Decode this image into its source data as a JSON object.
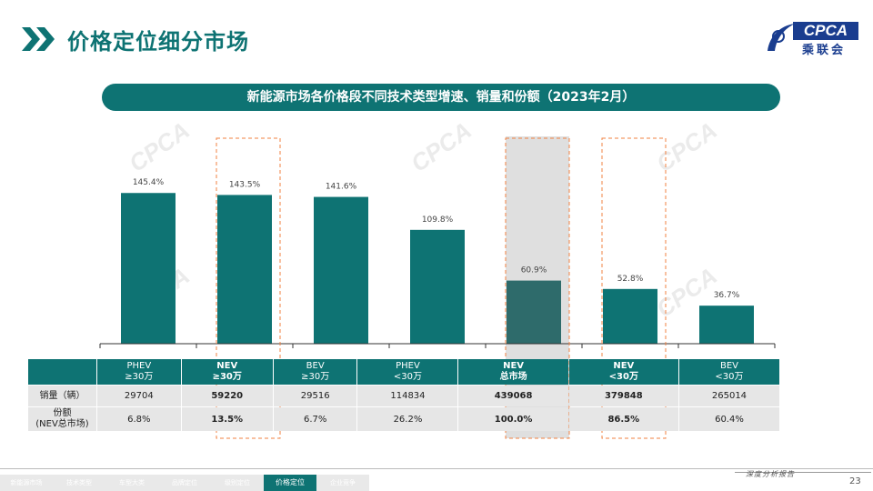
{
  "page": {
    "title": "价格定位细分市场",
    "banner": "新能源市场各价格段不同技术类型增速、销量和份额（2023年2月）",
    "page_number": "23",
    "footer_caption": "深度分析报告"
  },
  "logo": {
    "text": "CPCA",
    "cn": "乘联会"
  },
  "watermark": {
    "text": "CPCA",
    "cn": "乘联会"
  },
  "colors": {
    "accent": "#0e7373",
    "highlight_border": "#f08040",
    "highlight_fill": "#d9d9d9",
    "bar_highlight": "#2e6b6b"
  },
  "footer_nav": [
    {
      "label": "新能源市场",
      "active": false
    },
    {
      "label": "技术类型",
      "active": false
    },
    {
      "label": "车型大类",
      "active": false
    },
    {
      "label": "品牌定位",
      "active": false
    },
    {
      "label": "级别定位",
      "active": false
    },
    {
      "label": "价格定位",
      "active": true
    },
    {
      "label": "企业竞争",
      "active": false
    }
  ],
  "chart_data": {
    "type": "bar",
    "title": "新能源市场各价格段不同技术类型增速、销量和份额（2023年2月）",
    "categories": [
      "PHEV ≥30万",
      "NEV ≥30万",
      "BEV ≥30万",
      "PHEV <30万",
      "NEV 总市场",
      "NEV <30万",
      "BEV <30万"
    ],
    "category_lines": [
      [
        "PHEV",
        "≥30万"
      ],
      [
        "NEV",
        "≥30万"
      ],
      [
        "BEV",
        "≥30万"
      ],
      [
        "PHEV",
        "<30万"
      ],
      [
        "NEV",
        "总市场"
      ],
      [
        "NEV",
        "<30万"
      ],
      [
        "BEV",
        "<30万"
      ]
    ],
    "values": [
      145.4,
      143.5,
      141.6,
      109.8,
      60.9,
      52.8,
      36.7
    ],
    "value_labels": [
      "145.4%",
      "143.5%",
      "141.6%",
      "109.8%",
      "60.9%",
      "52.8%",
      "36.7%"
    ],
    "ylim": [
      0,
      200
    ],
    "highlight_dashed": [
      1,
      4,
      5
    ],
    "highlight_filled": [
      4
    ],
    "bold_categories": [
      1,
      4,
      5
    ],
    "table": {
      "rows": [
        {
          "label": "销量（辆）",
          "values": [
            "29704",
            "59220",
            "29516",
            "114834",
            "439068",
            "379848",
            "265014"
          ]
        },
        {
          "label_lines": [
            "份额",
            "(NEV总市场)"
          ],
          "values": [
            "6.8%",
            "13.5%",
            "6.7%",
            "26.2%",
            "100.0%",
            "86.5%",
            "60.4%"
          ]
        }
      ]
    }
  }
}
